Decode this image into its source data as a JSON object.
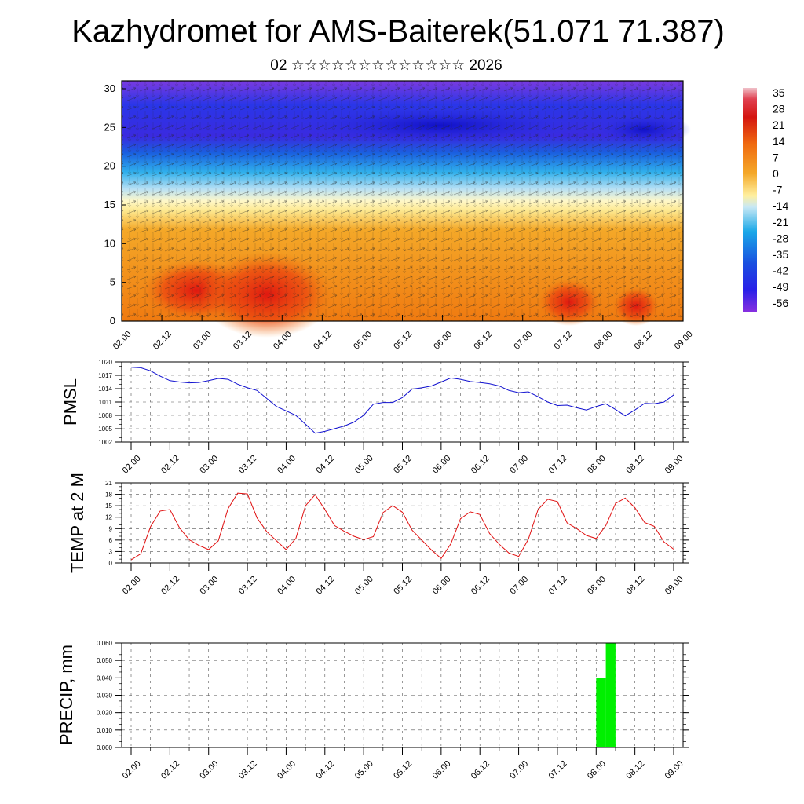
{
  "header": {
    "title": "Kazhydromet for AMS-Baiterek(51.071 71.387)",
    "subtitle": "02 ☆☆☆☆☆☆☆☆☆☆☆☆☆ 2026"
  },
  "chart_data": [
    {
      "type": "heatmap",
      "name": "temperature-wind-cross-section",
      "xlabel": "",
      "ylabel": "",
      "x_tick_labels": [
        "02.00",
        "02.12",
        "03.00",
        "03.12",
        "04.00",
        "04.12",
        "05.00",
        "05.12",
        "06.00",
        "06.12",
        "07.00",
        "07.12",
        "08.00",
        "08.12",
        "09.00"
      ],
      "xlim": [
        0,
        14
      ],
      "ylim": [
        0,
        30
      ],
      "y_ticks": [
        0,
        5,
        10,
        15,
        20,
        25,
        30
      ],
      "colorbar_labels": [
        35,
        28,
        21,
        14,
        7,
        0,
        -7,
        -14,
        -21,
        -28,
        -35,
        -42,
        -49,
        -56
      ],
      "colors": {
        "hot": "#d41510",
        "warm": "#f06a10",
        "orange": "#f4a020",
        "yellow": "#fff0a0",
        "light_blue": "#a8d8f0",
        "cyan": "#1aa8e8",
        "blue": "#1a40e0",
        "purple": "#7a30e0"
      }
    },
    {
      "type": "line",
      "name": "PMSL",
      "ylabel": "PMSL",
      "x_tick_labels": [
        "02.00",
        "02.12",
        "03.00",
        "03.12",
        "04.00",
        "04.12",
        "05.00",
        "05.12",
        "06.00",
        "06.12",
        "07.00",
        "07.12",
        "08.00",
        "08.12",
        "09.00"
      ],
      "y_ticks": [
        1002,
        1005,
        1008,
        1011,
        1014,
        1017,
        1020
      ],
      "ylim": [
        1002,
        1020
      ],
      "color": "#1010d0",
      "x": [
        0,
        0.25,
        0.5,
        0.75,
        1,
        1.25,
        1.5,
        1.75,
        2,
        2.25,
        2.5,
        2.75,
        3,
        3.25,
        3.5,
        3.75,
        4,
        4.25,
        4.5,
        4.75,
        5,
        5.25,
        5.5,
        5.75,
        6,
        6.25,
        6.5,
        6.75,
        7,
        7.25,
        7.5,
        7.75,
        8,
        8.25,
        8.5,
        8.75,
        9,
        9.25,
        9.5,
        9.75,
        10,
        10.25,
        10.5,
        10.75,
        11,
        11.25,
        11.5,
        11.75,
        12,
        12.25,
        12.5,
        12.75,
        13,
        13.25,
        13.5,
        13.75,
        14
      ],
      "values": [
        1018.8,
        1018.7,
        1018.0,
        1016.8,
        1015.8,
        1015.5,
        1015.3,
        1015.4,
        1015.8,
        1016.3,
        1016.1,
        1015.0,
        1014.2,
        1013.6,
        1011.8,
        1010.0,
        1009.0,
        1008.0,
        1006.0,
        1004.0,
        1004.4,
        1005.0,
        1005.6,
        1006.5,
        1008.0,
        1010.5,
        1010.9,
        1010.9,
        1012.0,
        1013.9,
        1014.2,
        1014.6,
        1015.5,
        1016.4,
        1016.1,
        1015.6,
        1015.4,
        1015.1,
        1014.6,
        1013.6,
        1013.1,
        1013.3,
        1012.2,
        1011.0,
        1010.2,
        1010.3,
        1009.7,
        1009.2,
        1010.0,
        1010.6,
        1009.3,
        1007.9,
        1009.2,
        1010.7,
        1010.6,
        1011.0,
        1012.6
      ]
    },
    {
      "type": "line",
      "name": "TEMP at 2 M",
      "ylabel": "TEMP at 2 M",
      "x_tick_labels": [
        "02.00",
        "02.12",
        "03.00",
        "03.12",
        "04.00",
        "04.12",
        "05.00",
        "05.12",
        "06.00",
        "06.12",
        "07.00",
        "07.12",
        "08.00",
        "08.12",
        "09.00"
      ],
      "y_ticks": [
        0,
        3,
        6,
        9,
        12,
        15,
        18,
        21
      ],
      "ylim": [
        0,
        21
      ],
      "color": "#e01010",
      "x": [
        0,
        0.25,
        0.5,
        0.75,
        1,
        1.25,
        1.5,
        1.75,
        2,
        2.25,
        2.5,
        2.75,
        3,
        3.25,
        3.5,
        3.75,
        4,
        4.25,
        4.5,
        4.75,
        5,
        5.25,
        5.5,
        5.75,
        6,
        6.25,
        6.5,
        6.75,
        7,
        7.25,
        7.5,
        7.75,
        8,
        8.25,
        8.5,
        8.75,
        9,
        9.25,
        9.5,
        9.75,
        10,
        10.25,
        10.5,
        10.75,
        11,
        11.25,
        11.5,
        11.75,
        12,
        12.25,
        12.5,
        12.75,
        13,
        13.25,
        13.5,
        13.75,
        14
      ],
      "values": [
        0.8,
        2.4,
        9.5,
        13.6,
        14.0,
        9.2,
        6.1,
        4.6,
        3.5,
        5.8,
        14.2,
        18.3,
        18.1,
        11.8,
        8.2,
        5.8,
        3.5,
        6.4,
        15.0,
        17.9,
        14.0,
        9.8,
        8.3,
        7.0,
        6.1,
        6.9,
        13.2,
        15.0,
        13.3,
        8.6,
        6.0,
        3.4,
        1.2,
        5.0,
        11.6,
        13.4,
        12.7,
        7.7,
        4.9,
        2.6,
        1.7,
        6.2,
        14.0,
        16.7,
        16.1,
        10.5,
        9.0,
        7.2,
        6.4,
        9.8,
        15.6,
        17.0,
        14.5,
        10.6,
        9.6,
        5.5,
        3.6
      ]
    },
    {
      "type": "bar",
      "name": "PRECIP, mm",
      "ylabel": "PRECIP, mm",
      "x_tick_labels": [
        "02.00",
        "02.12",
        "03.00",
        "03.12",
        "04.00",
        "04.12",
        "05.00",
        "05.12",
        "06.00",
        "06.12",
        "07.00",
        "07.12",
        "08.00",
        "08.12",
        "09.00"
      ],
      "y_tick_labels": [
        "0.000",
        "0.010",
        "0.020",
        "0.030",
        "0.040",
        "0.050",
        "0.060"
      ],
      "ylim": [
        0,
        0.06
      ],
      "color": "#00f000",
      "bars": [
        {
          "x0": 12.0,
          "x1": 12.25,
          "value": 0.04
        },
        {
          "x0": 12.25,
          "x1": 12.5,
          "value": 0.06
        }
      ]
    }
  ]
}
